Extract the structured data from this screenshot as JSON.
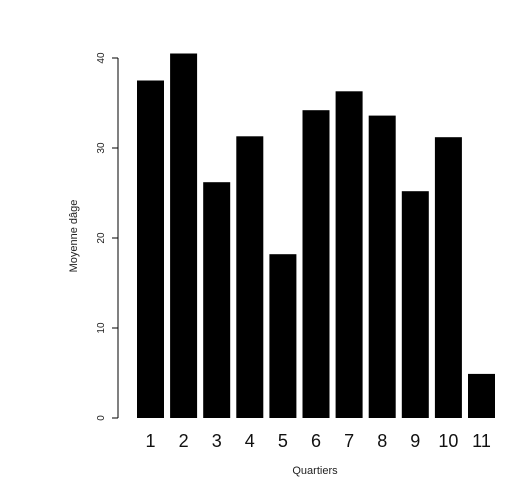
{
  "chart_data": {
    "type": "bar",
    "categories": [
      "1",
      "2",
      "3",
      "4",
      "5",
      "6",
      "7",
      "8",
      "9",
      "10",
      "11"
    ],
    "values": [
      37.5,
      40.5,
      26.2,
      31.3,
      18.2,
      34.2,
      36.3,
      33.6,
      25.2,
      31.2,
      4.9
    ],
    "title": "",
    "xlabel": "Quartiers",
    "ylabel": "Moyenne dâge",
    "ylim": [
      0,
      40
    ],
    "yticks": [
      0,
      10,
      20,
      30,
      40
    ],
    "bar_color": "#000000",
    "axis_color": "#000000",
    "grid": false,
    "legend": "none"
  }
}
